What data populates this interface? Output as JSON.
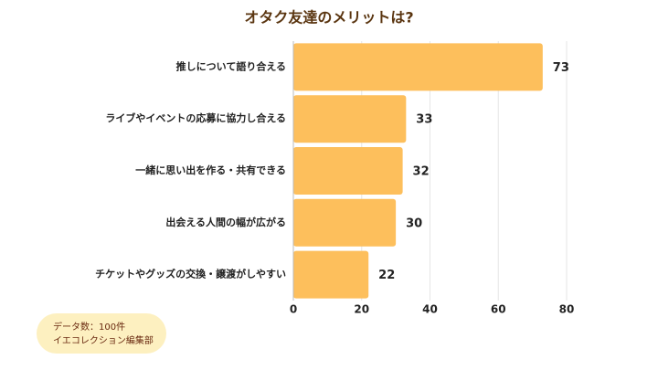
{
  "chart_data": {
    "type": "barh",
    "title": "オタク友達のメリットは?",
    "categories": [
      "推しについて語り合える",
      "ライブやイベントの応募に協力し合える",
      "一緒に思い出を作る・共有できる",
      "出会える人間の幅が広がる",
      "チケットやグッズの交換・譲渡がしやすい"
    ],
    "values": [
      73,
      33,
      32,
      30,
      22
    ],
    "color": "#fdbf5c",
    "xlim": [
      0,
      80
    ],
    "xticks": [
      0,
      20,
      40,
      60,
      80
    ],
    "grid": true,
    "notes": [
      "データ数：100件",
      "イエコレクション編集部"
    ]
  }
}
